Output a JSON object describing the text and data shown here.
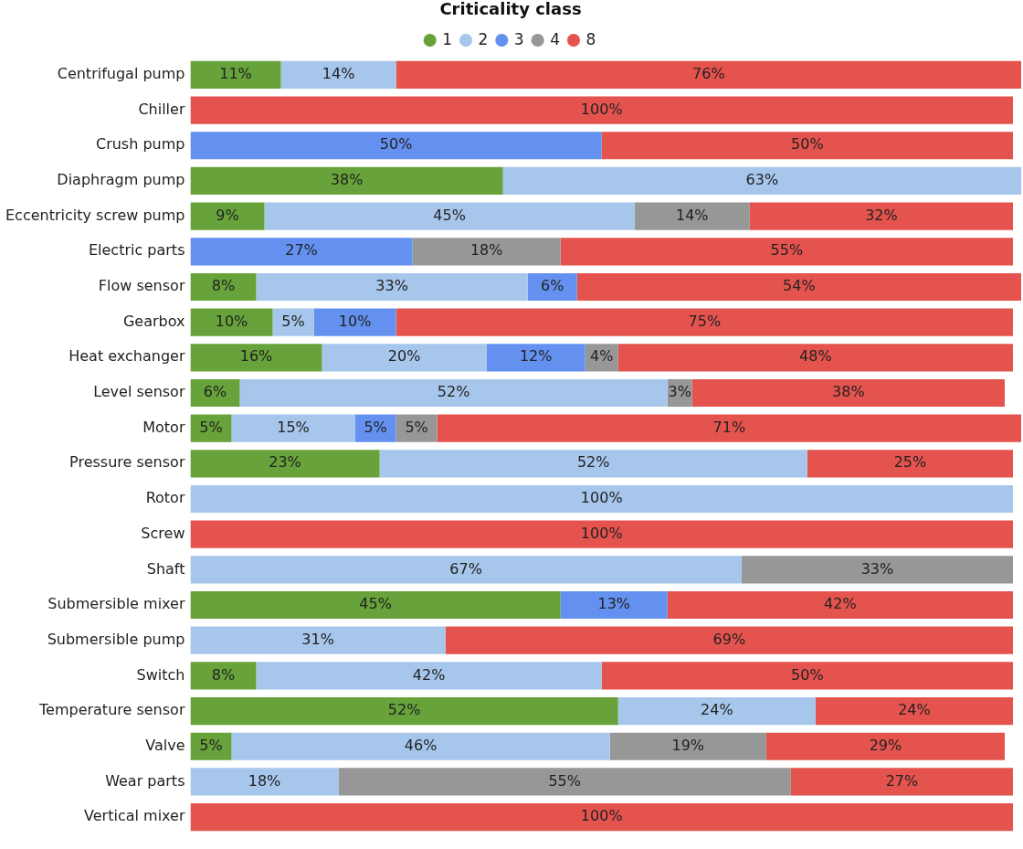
{
  "chart_data": {
    "type": "bar",
    "orientation": "horizontal",
    "stacked": true,
    "legend": "top",
    "legend_title": "Criticality class",
    "grid": false,
    "tick_labels": "y",
    "marker": "circle",
    "categories": [
      "Centrifugal pump",
      "Chiller",
      "Crush pump",
      "Diaphragm pump",
      "Eccentricity screw pump",
      "Electric parts",
      "Flow sensor",
      "Gearbox",
      "Heat exchanger",
      "Level sensor",
      "Motor",
      "Pressure sensor",
      "Rotor",
      "Screw",
      "Shaft",
      "Submersible mixer",
      "Submersible pump",
      "Switch",
      "Temperature sensor",
      "Valve",
      "Wear parts",
      "Vertical mixer"
    ],
    "series": [
      {
        "name": "1",
        "color": "#67a33a",
        "values": [
          11,
          null,
          null,
          38,
          9,
          null,
          8,
          10,
          16,
          6,
          5,
          23,
          null,
          null,
          null,
          45,
          null,
          8,
          52,
          5,
          null,
          null
        ],
        "value_labels": [
          "11%",
          null,
          null,
          "38%",
          "9%",
          null,
          "8%",
          "10%",
          "16%",
          "6%",
          "5%",
          "23%",
          null,
          null,
          null,
          "45%",
          null,
          "8%",
          "52%",
          "5%",
          null,
          null
        ]
      },
      {
        "name": "2",
        "color": "#a6c6ec",
        "values": [
          14,
          null,
          null,
          63,
          45,
          null,
          33,
          5,
          20,
          52,
          15,
          52,
          100,
          null,
          67,
          null,
          31,
          42,
          24,
          46,
          18,
          null
        ],
        "value_labels": [
          "14%",
          null,
          null,
          "63%",
          "45%",
          null,
          "33%",
          "5%",
          "20%",
          "52%",
          "15%",
          "52%",
          "100%",
          null,
          "67%",
          null,
          "31%",
          "42%",
          "24%",
          "46%",
          "18%",
          null
        ]
      },
      {
        "name": "3",
        "color": "#6491f0",
        "values": [
          null,
          null,
          50,
          null,
          null,
          27,
          6,
          10,
          12,
          null,
          5,
          null,
          null,
          null,
          null,
          13,
          null,
          null,
          null,
          null,
          null,
          null
        ],
        "value_labels": [
          null,
          null,
          "50%",
          null,
          null,
          "27%",
          "6%",
          "10%",
          "12%",
          null,
          "5%",
          null,
          null,
          null,
          null,
          "13%",
          null,
          null,
          null,
          null,
          null,
          null
        ]
      },
      {
        "name": "4",
        "color": "#979797",
        "values": [
          null,
          null,
          null,
          null,
          14,
          18,
          null,
          null,
          4,
          3,
          5,
          null,
          null,
          null,
          33,
          null,
          null,
          null,
          null,
          19,
          55,
          null
        ],
        "value_labels": [
          null,
          null,
          null,
          null,
          "14%",
          "18%",
          null,
          null,
          "4%",
          "3%",
          "5%",
          null,
          null,
          null,
          "33%",
          null,
          null,
          null,
          null,
          "19%",
          "55%",
          null
        ]
      },
      {
        "name": "8",
        "color": "#e5534e",
        "values": [
          76,
          100,
          50,
          null,
          32,
          55,
          54,
          75,
          48,
          38,
          71,
          25,
          null,
          100,
          null,
          42,
          69,
          50,
          24,
          29,
          27,
          100
        ],
        "value_labels": [
          "76%",
          "100%",
          "50%",
          null,
          "32%",
          "55%",
          "54%",
          "75%",
          "48%",
          "38%",
          "71%",
          "25%",
          null,
          "100%",
          null,
          "42%",
          "69%",
          "50%",
          "24%",
          "29%",
          "27%",
          "100%"
        ]
      }
    ]
  }
}
